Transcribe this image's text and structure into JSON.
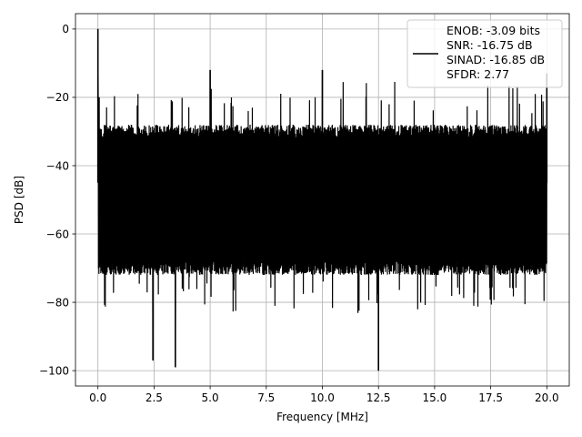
{
  "chart_data": {
    "type": "line",
    "title": "",
    "xlabel": "Frequency [MHz]",
    "ylabel": "PSD [dB]",
    "xlim": [
      -1.0,
      21.0
    ],
    "ylim": [
      -104.5,
      4.5
    ],
    "grid": true,
    "legend_position": "top-right",
    "x_ticks": [
      0.0,
      2.5,
      5.0,
      7.5,
      10.0,
      12.5,
      15.0,
      17.5,
      20.0
    ],
    "x_tick_labels": [
      "0.0",
      "2.5",
      "5.0",
      "7.5",
      "10.0",
      "12.5",
      "15.0",
      "17.5",
      "20.0"
    ],
    "y_ticks": [
      0,
      -20,
      -40,
      -60,
      -80,
      -100
    ],
    "y_tick_labels": [
      "0",
      "−20",
      "−40",
      "−60",
      "−80",
      "−100"
    ],
    "series": [
      {
        "color": "#000000",
        "noise_floor_upper_db": [
          -32,
          -28
        ],
        "noise_floor_lower_db": [
          -72,
          -68
        ],
        "peaks": [
          {
            "x": 0.0,
            "y": 0
          },
          {
            "x": 0.05,
            "y": -20
          },
          {
            "x": 5.0,
            "y": -12
          },
          {
            "x": 10.0,
            "y": -12
          },
          {
            "x": 12.5,
            "y": -100
          },
          {
            "x": 3.45,
            "y": -99
          },
          {
            "x": 2.45,
            "y": -97
          },
          {
            "x": 20.0,
            "y": -13
          }
        ]
      }
    ],
    "legend": {
      "entries": [
        "ENOB: -3.09 bits",
        "SNR: -16.75 dB",
        "SINAD: -16.85 dB",
        "SFDR: 2.77"
      ]
    }
  }
}
